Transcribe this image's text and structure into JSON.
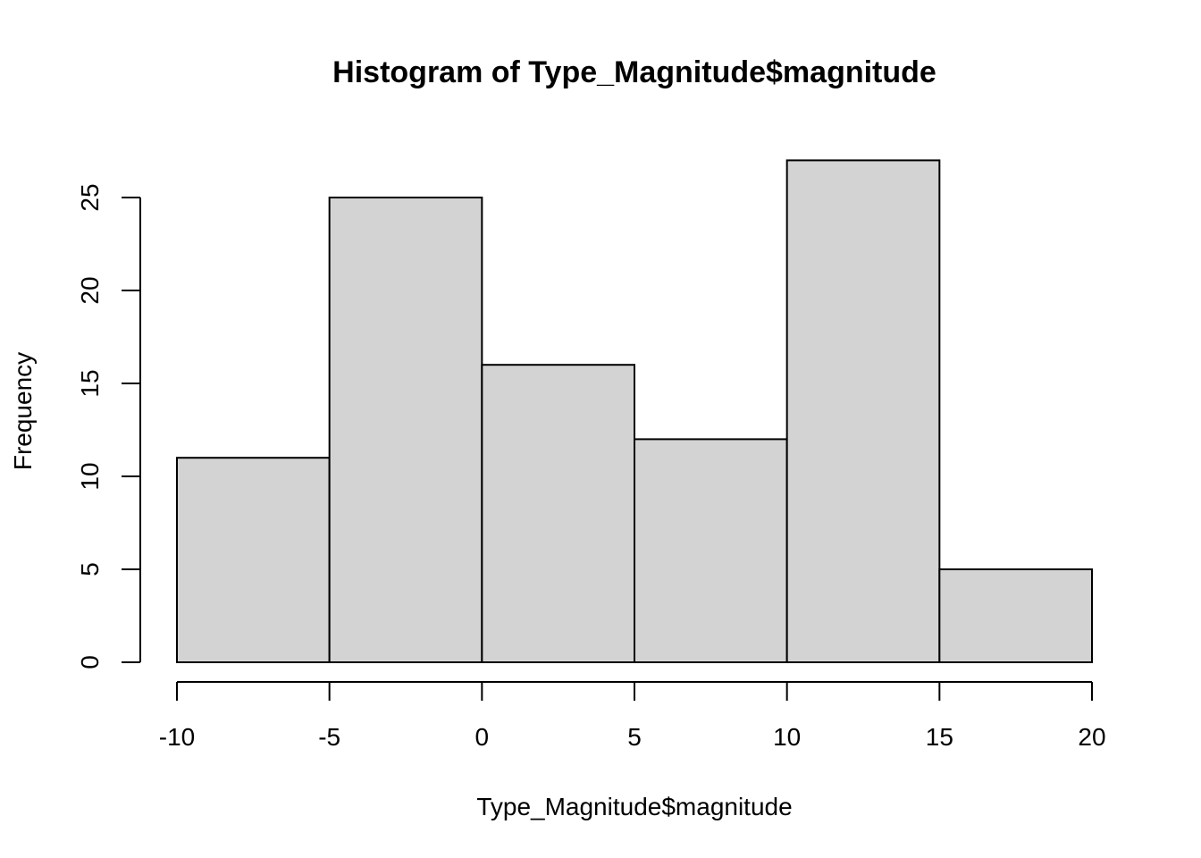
{
  "chart_data": {
    "type": "bar",
    "subtype": "histogram",
    "title": "Histogram of Type_Magnitude$magnitude",
    "xlabel": "Type_Magnitude$magnitude",
    "ylabel": "Frequency",
    "breaks": [
      -10,
      -5,
      0,
      5,
      10,
      15,
      20
    ],
    "values": [
      11,
      25,
      16,
      12,
      27,
      5
    ],
    "xlim": [
      -10,
      20
    ],
    "ylim": [
      0,
      25
    ],
    "x_ticks": [
      -10,
      -5,
      0,
      5,
      10,
      15,
      20
    ],
    "x_tick_labels": [
      "-10",
      "-5",
      "0",
      "5",
      "10",
      "15",
      "20"
    ],
    "y_ticks": [
      0,
      5,
      10,
      15,
      20,
      25
    ],
    "y_tick_labels": [
      "0",
      "5",
      "10",
      "15",
      "20",
      "25"
    ],
    "bar_fill": "#d3d3d3",
    "bar_stroke": "#000000",
    "grid": false,
    "legend": "none"
  }
}
